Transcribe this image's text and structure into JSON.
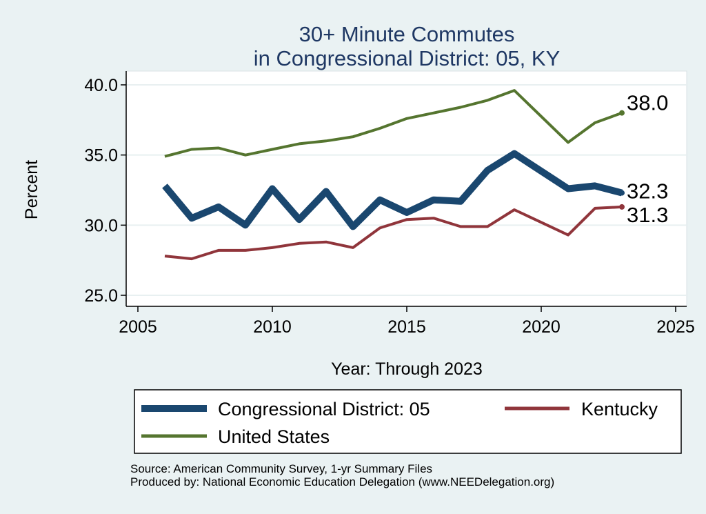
{
  "chart_data": {
    "type": "line",
    "title": "30+ Minute Commutes",
    "subtitle": "in Congressional District:  05, KY",
    "xlabel": "Year: Through 2023",
    "ylabel": "Percent",
    "xlim": [
      2005,
      2025
    ],
    "ylim": [
      25,
      40
    ],
    "xticks": [
      "2005",
      "2010",
      "2015",
      "2020",
      "2025"
    ],
    "yticks": [
      "25.0",
      "30.0",
      "35.0",
      "40.0"
    ],
    "grid": true,
    "legend_position": "bottom",
    "x": [
      2006,
      2007,
      2008,
      2009,
      2010,
      2011,
      2012,
      2013,
      2014,
      2015,
      2016,
      2017,
      2018,
      2019,
      2021,
      2022,
      2023
    ],
    "series": [
      {
        "name": "Congressional District:  05",
        "color": "#1a476f",
        "values": [
          32.8,
          30.5,
          31.3,
          30.0,
          32.6,
          30.4,
          32.4,
          29.9,
          31.8,
          30.9,
          31.8,
          31.7,
          33.9,
          35.1,
          32.6,
          32.8,
          32.3
        ],
        "end_label": "32.3"
      },
      {
        "name": "Kentucky",
        "color": "#90353b",
        "values": [
          27.8,
          27.6,
          28.2,
          28.2,
          28.4,
          28.7,
          28.8,
          28.4,
          29.8,
          30.4,
          30.5,
          29.9,
          29.9,
          31.1,
          29.3,
          31.2,
          31.3
        ],
        "end_label": "31.3"
      },
      {
        "name": "United States",
        "color": "#55752f",
        "values": [
          34.9,
          35.4,
          35.5,
          35.0,
          35.4,
          35.8,
          36.0,
          36.3,
          36.9,
          37.6,
          38.0,
          38.4,
          38.9,
          39.6,
          35.9,
          37.3,
          38.0
        ],
        "end_label": "38.0"
      }
    ]
  },
  "footer": {
    "source": "Source: American Community Survey, 1-yr Summary Files",
    "producer": "Produced by: National Economic Education Delegation (www.NEEDelegation.org)"
  }
}
